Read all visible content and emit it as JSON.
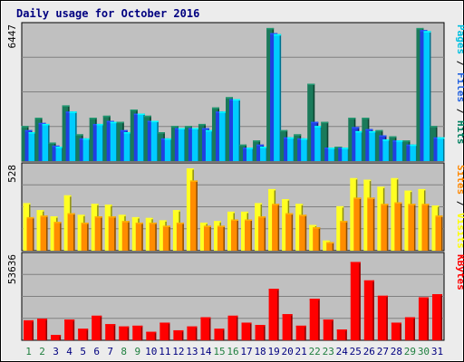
{
  "chart_data": {
    "type": "bar",
    "title": "Daily usage for October 2016",
    "categories": [
      "1",
      "2",
      "3",
      "4",
      "5",
      "6",
      "7",
      "8",
      "9",
      "10",
      "11",
      "12",
      "13",
      "14",
      "15",
      "16",
      "17",
      "18",
      "19",
      "20",
      "21",
      "22",
      "23",
      "24",
      "25",
      "26",
      "27",
      "28",
      "29",
      "30",
      "31"
    ],
    "weekend_days": [
      "1",
      "2",
      "8",
      "9",
      "15",
      "16",
      "22",
      "23",
      "29",
      "30"
    ],
    "panels": [
      {
        "name": "top",
        "ymax_label": "6447",
        "ymax": 6447,
        "label_parts": [
          {
            "text": "Pages",
            "color": "#00c0e0"
          },
          {
            "text": " / ",
            "color": "#000000"
          },
          {
            "text": "Files",
            "color": "#2060e0"
          },
          {
            "text": " / ",
            "color": "#000000"
          },
          {
            "text": "Hits",
            "color": "#008060"
          }
        ],
        "series": [
          {
            "name": "Hits",
            "color": "#1a7a5a",
            "values": [
              1700,
              2100,
              900,
              2700,
              1300,
              2100,
              2200,
              1900,
              2500,
              2200,
              1400,
              1700,
              1700,
              1800,
              2600,
              3100,
              800,
              1000,
              6450,
              1500,
              1300,
              3750,
              1900,
              700,
              2100,
              2100,
              1500,
              1200,
              1000,
              6450,
              1700
            ]
          },
          {
            "name": "Files",
            "color": "#2040e0",
            "values": [
              1500,
              1850,
              750,
              2400,
              1100,
              1800,
              1950,
              1500,
              2300,
              1950,
              1100,
              1600,
              1600,
              1600,
              2400,
              3000,
              650,
              800,
              6200,
              1150,
              1100,
              1900,
              650,
              650,
              1650,
              1550,
              1250,
              1000,
              800,
              6350,
              1150
            ]
          },
          {
            "name": "Pages",
            "color": "#00ccff",
            "values": [
              1400,
              1800,
              700,
              2400,
              1100,
              1800,
              1900,
              1400,
              2300,
              1950,
              1100,
              1600,
              1600,
              1500,
              2400,
              3000,
              650,
              700,
              6150,
              1150,
              1100,
              1700,
              650,
              650,
              1450,
              1450,
              1050,
              1000,
              800,
              6300,
              1150
            ]
          }
        ]
      },
      {
        "name": "middle",
        "ymax_label": "528",
        "ymax": 528,
        "label_parts": [
          {
            "text": "Sites",
            "color": "#ff8800"
          },
          {
            "text": " / ",
            "color": "#000000"
          },
          {
            "text": "Visits",
            "color": "#ffff00"
          }
        ],
        "series": [
          {
            "name": "Visits",
            "color": "#ffff22",
            "values": [
              305,
              260,
              220,
              355,
              230,
              300,
              295,
              230,
              215,
              210,
              195,
              260,
              528,
              180,
              190,
              250,
              250,
              305,
              395,
              330,
              300,
              165,
              65,
              285,
              465,
              455,
              410,
              465,
              385,
              395,
              290
            ]
          },
          {
            "name": "Sites",
            "color": "#ff8c00",
            "values": [
              215,
              225,
              185,
              240,
              180,
              220,
              220,
              190,
              180,
              180,
              160,
              180,
              450,
              160,
              160,
              200,
              200,
              220,
              300,
              240,
              230,
              150,
              55,
              190,
              340,
              340,
              300,
              310,
              300,
              300,
              225
            ]
          }
        ]
      },
      {
        "name": "bottom",
        "ymax_label": "53636",
        "ymax": 53636,
        "label_parts": [
          {
            "text": "KBytes",
            "color": "#ff0000"
          }
        ],
        "series": [
          {
            "name": "KBytes",
            "color": "#ff0000",
            "values": [
              13000,
              14000,
              3500,
              13500,
              7500,
              16000,
              10500,
              9000,
              9500,
              5500,
              11500,
              6500,
              9000,
              15000,
              7500,
              16000,
              11500,
              10000,
              33500,
              17000,
              9500,
              27000,
              13500,
              7000,
              51000,
              39000,
              29000,
              11500,
              15000,
              28000,
              30000
            ]
          }
        ]
      }
    ],
    "grid": true
  }
}
